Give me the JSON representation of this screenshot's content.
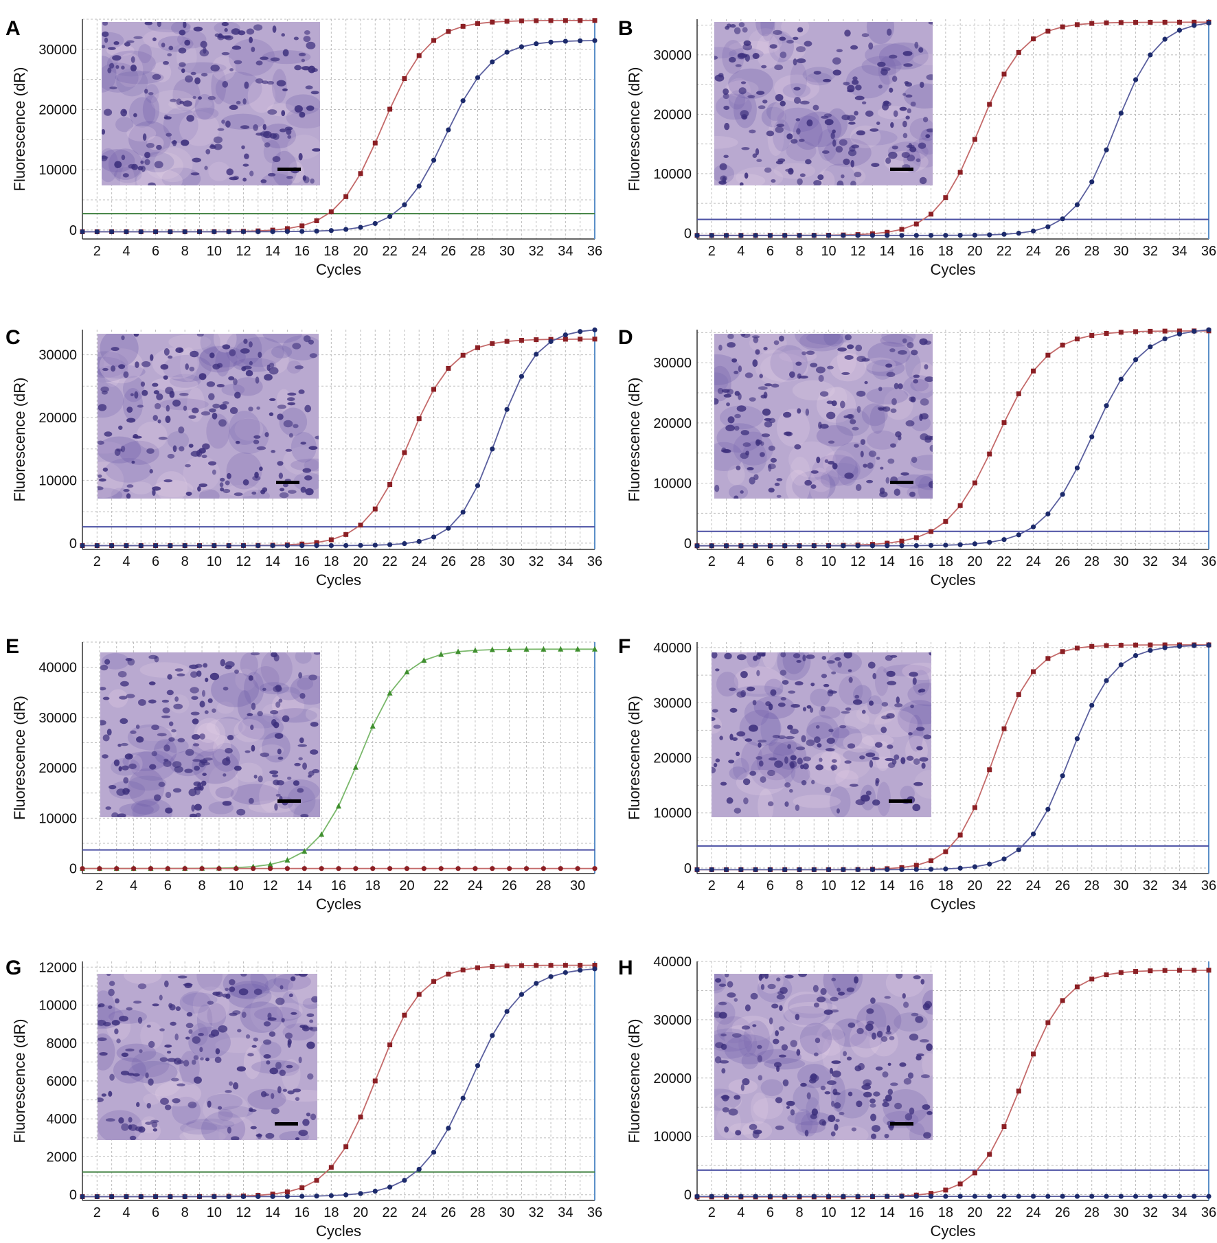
{
  "colors": {
    "red_series": "#8b1f24",
    "red_line": "#c46a6a",
    "blue_series": "#1c2a6b",
    "blue_line": "#5a5f9e",
    "green_series": "#3f8f2e",
    "green_line": "#7ab86b",
    "threshold_blue": "#4a4fa3",
    "threshold_green": "#3e7f3e",
    "right_edge": "#5a8fc8",
    "tissue_light": "#b9a9d0",
    "tissue_dark": "#6b5aa8",
    "nuclei": "#3c2f7c"
  },
  "chart_data": [
    {
      "panel": "A",
      "type": "line",
      "xlabel": "Cycles",
      "ylabel": "Fluorescence (dR)",
      "xlim": [
        1,
        36
      ],
      "ylim": [
        -1500,
        35000
      ],
      "xticks": [
        "2",
        "4",
        "6",
        "8",
        "10",
        "12",
        "14",
        "16",
        "18",
        "20",
        "22",
        "24",
        "26",
        "28",
        "30",
        "32",
        "34",
        "36"
      ],
      "yticks": [
        "0",
        "10000",
        "20000",
        "30000"
      ],
      "threshold": {
        "value": 2700,
        "color": "green"
      },
      "series": [
        {
          "color": "red",
          "marker": "square",
          "ct": 21.5,
          "plateau": 34800,
          "base": -300,
          "slope": 1.55
        },
        {
          "color": "blue",
          "marker": "circle",
          "ct": 25.8,
          "plateau": 31500,
          "base": -300,
          "slope": 1.55
        }
      ]
    },
    {
      "panel": "B",
      "type": "line",
      "xlabel": "Cycles",
      "ylabel": "Fluorescence (dR)",
      "xlim": [
        1,
        36
      ],
      "ylim": [
        -1000,
        36000
      ],
      "xticks": [
        "2",
        "4",
        "6",
        "8",
        "10",
        "12",
        "14",
        "16",
        "18",
        "20",
        "22",
        "24",
        "26",
        "28",
        "30",
        "32",
        "34",
        "36"
      ],
      "yticks": [
        "0",
        "10000",
        "20000",
        "30000"
      ],
      "threshold": {
        "value": 2300,
        "color": "blue"
      },
      "series": [
        {
          "color": "red",
          "marker": "square",
          "ct": 20.3,
          "plateau": 35500,
          "base": -400,
          "slope": 1.5
        },
        {
          "color": "blue",
          "marker": "circle",
          "ct": 29.6,
          "plateau": 35800,
          "base": -400,
          "slope": 1.45
        }
      ]
    },
    {
      "panel": "C",
      "type": "line",
      "xlabel": "Cycles",
      "ylabel": "Fluorescence (dR)",
      "xlim": [
        1,
        36
      ],
      "ylim": [
        -1000,
        34000
      ],
      "xticks": [
        "2",
        "4",
        "6",
        "8",
        "10",
        "12",
        "14",
        "16",
        "18",
        "20",
        "22",
        "24",
        "26",
        "28",
        "30",
        "32",
        "34",
        "36"
      ],
      "yticks": [
        "0",
        "10000",
        "20000",
        "30000"
      ],
      "threshold": {
        "value": 2600,
        "color": "blue"
      },
      "series": [
        {
          "color": "red",
          "marker": "square",
          "ct": 23.3,
          "plateau": 32500,
          "base": -400,
          "slope": 1.5
        },
        {
          "color": "blue",
          "marker": "circle",
          "ct": 29.3,
          "plateau": 34200,
          "base": -400,
          "slope": 1.35
        }
      ]
    },
    {
      "panel": "D",
      "type": "line",
      "xlabel": "Cycles",
      "ylabel": "Fluorescence (dR)",
      "xlim": [
        1,
        36
      ],
      "ylim": [
        -1000,
        35500
      ],
      "xticks": [
        "2",
        "4",
        "6",
        "8",
        "10",
        "12",
        "14",
        "16",
        "18",
        "20",
        "22",
        "24",
        "26",
        "28",
        "30",
        "32",
        "34",
        "36"
      ],
      "yticks": [
        "0",
        "10000",
        "20000",
        "30000"
      ],
      "threshold": {
        "value": 2000,
        "color": "blue"
      },
      "series": [
        {
          "color": "red",
          "marker": "square",
          "ct": 21.5,
          "plateau": 35300,
          "base": -400,
          "slope": 1.7
        },
        {
          "color": "blue",
          "marker": "circle",
          "ct": 28.0,
          "plateau": 35800,
          "base": -400,
          "slope": 1.7
        }
      ]
    },
    {
      "panel": "E",
      "type": "line",
      "xlabel": "Cycles",
      "ylabel": "Fluorescence (dR)",
      "xlim": [
        1,
        31
      ],
      "ylim": [
        -1000,
        45000
      ],
      "xticks": [
        "2",
        "4",
        "6",
        "8",
        "10",
        "12",
        "14",
        "16",
        "18",
        "20",
        "22",
        "24",
        "26",
        "28",
        "30"
      ],
      "yticks": [
        "0",
        "10000",
        "20000",
        "30000",
        "40000"
      ],
      "threshold": {
        "value": 3700,
        "color": "blue"
      },
      "series": [
        {
          "color": "green",
          "marker": "triangle",
          "ct": 17.2,
          "plateau": 43600,
          "base": 0,
          "slope": 1.3
        },
        {
          "color": "red",
          "marker": "circle",
          "flat": 0
        }
      ]
    },
    {
      "panel": "F",
      "type": "line",
      "xlabel": "Cycles",
      "ylabel": "Fluorescence (dR)",
      "xlim": [
        1,
        36
      ],
      "ylim": [
        -1000,
        41000
      ],
      "xticks": [
        "2",
        "4",
        "6",
        "8",
        "10",
        "12",
        "14",
        "16",
        "18",
        "20",
        "22",
        "24",
        "26",
        "28",
        "30",
        "32",
        "34",
        "36"
      ],
      "yticks": [
        "0",
        "10000",
        "20000",
        "30000",
        "40000"
      ],
      "threshold": {
        "value": 4000,
        "color": "blue"
      },
      "series": [
        {
          "color": "red",
          "marker": "square",
          "ct": 21.3,
          "plateau": 40500,
          "base": -300,
          "slope": 1.35
        },
        {
          "color": "blue",
          "marker": "circle",
          "ct": 26.5,
          "plateau": 40500,
          "base": -300,
          "slope": 1.5
        }
      ]
    },
    {
      "panel": "G",
      "type": "line",
      "xlabel": "Cycles",
      "ylabel": "Fluorescence (dR)",
      "xlim": [
        1,
        36
      ],
      "ylim": [
        -300,
        12300
      ],
      "xticks": [
        "2",
        "4",
        "6",
        "8",
        "10",
        "12",
        "14",
        "16",
        "18",
        "20",
        "22",
        "24",
        "26",
        "28",
        "30",
        "32",
        "34",
        "36"
      ],
      "yticks": [
        "0",
        "2000",
        "4000",
        "6000",
        "8000",
        "10000",
        "12000"
      ],
      "threshold": {
        "value": 1200,
        "color": "green"
      },
      "series": [
        {
          "color": "red",
          "marker": "square",
          "ct": 21.0,
          "plateau": 12100,
          "base": -100,
          "slope": 1.55
        },
        {
          "color": "blue",
          "marker": "circle",
          "ct": 27.5,
          "plateau": 12000,
          "base": -100,
          "slope": 1.75
        }
      ]
    },
    {
      "panel": "H",
      "type": "line",
      "xlabel": "Cycles",
      "ylabel": "Fluorescence (dR)",
      "xlim": [
        1,
        36
      ],
      "ylim": [
        -1000,
        40000
      ],
      "xticks": [
        "2",
        "4",
        "6",
        "8",
        "10",
        "12",
        "14",
        "16",
        "18",
        "20",
        "22",
        "24",
        "26",
        "28",
        "30",
        "32",
        "34",
        "36"
      ],
      "yticks": [
        "0",
        "10000",
        "20000",
        "30000",
        "40000"
      ],
      "threshold": {
        "value": 4200,
        "color": "blue"
      },
      "series": [
        {
          "color": "red",
          "marker": "square",
          "ct": 23.2,
          "plateau": 38500,
          "base": -400,
          "slope": 1.5
        },
        {
          "color": "blue",
          "marker": "circle",
          "flat": -300
        }
      ]
    }
  ]
}
